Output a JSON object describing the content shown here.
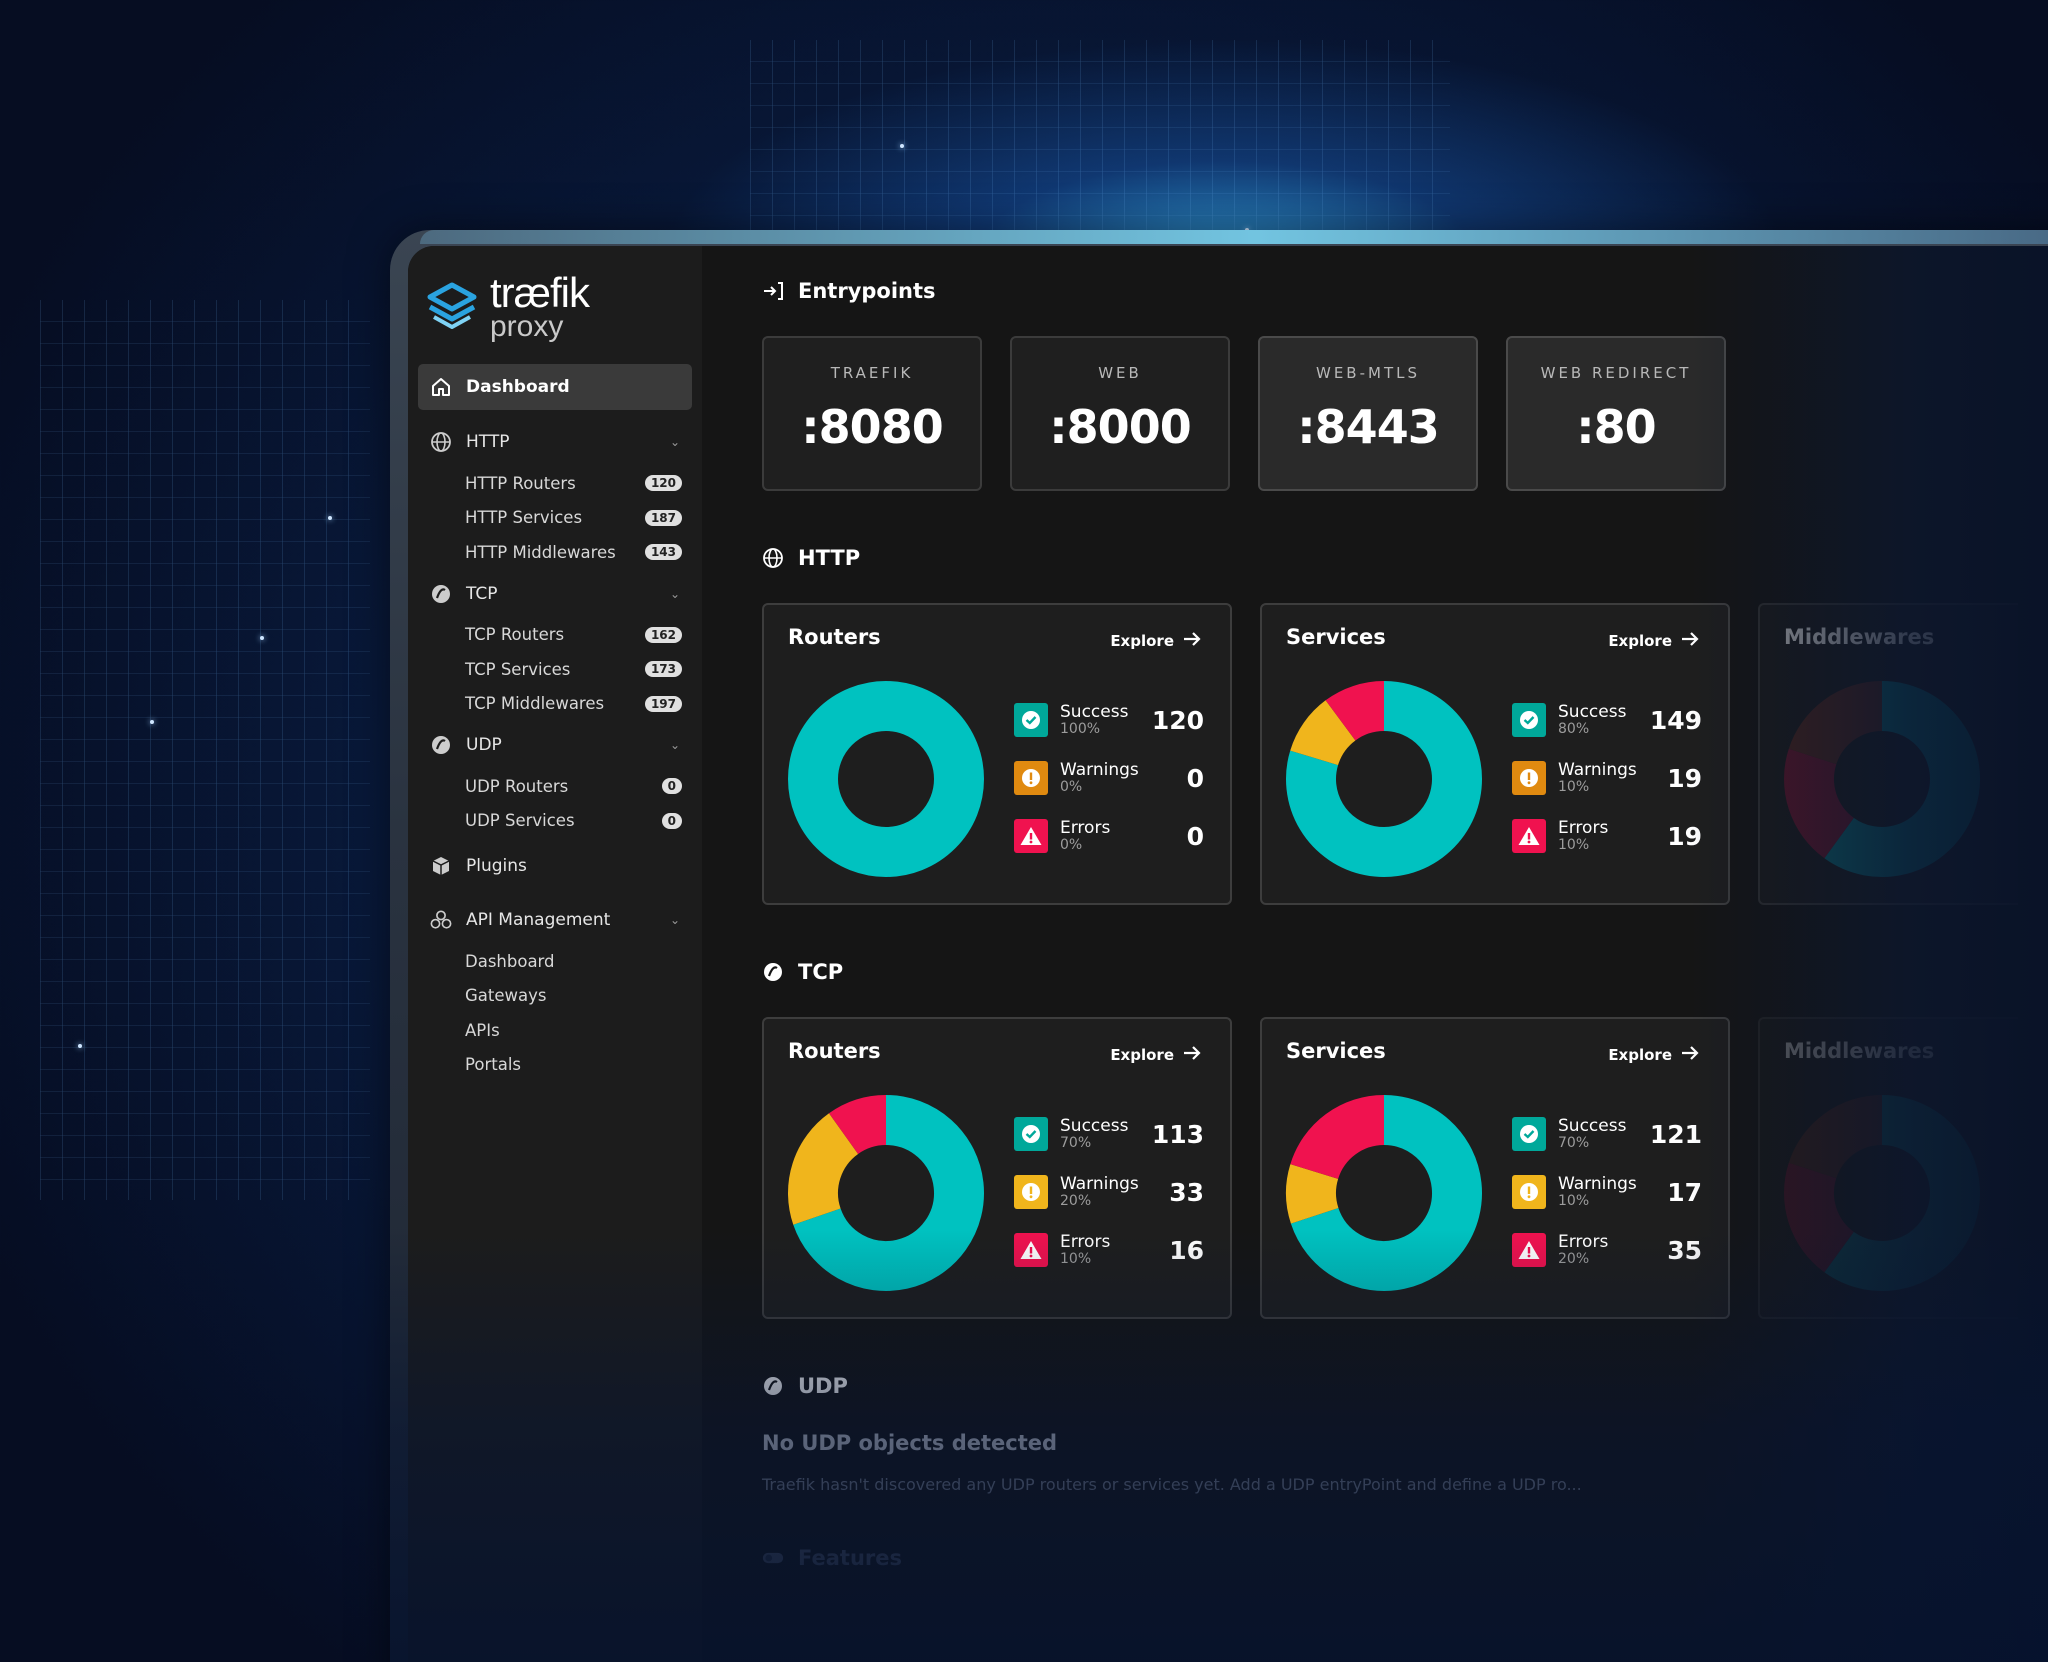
{
  "brand": {
    "name": "træfik",
    "sub": "proxy"
  },
  "sidebar": {
    "dashboard": "Dashboard",
    "groups": [
      {
        "label": "HTTP",
        "items": [
          {
            "label": "HTTP Routers",
            "count": "120"
          },
          {
            "label": "HTTP Services",
            "count": "187"
          },
          {
            "label": "HTTP Middlewares",
            "count": "143"
          }
        ]
      },
      {
        "label": "TCP",
        "items": [
          {
            "label": "TCP Routers",
            "count": "162"
          },
          {
            "label": "TCP Services",
            "count": "173"
          },
          {
            "label": "TCP Middlewares",
            "count": "197"
          }
        ]
      },
      {
        "label": "UDP",
        "items": [
          {
            "label": "UDP Routers",
            "count": "0"
          },
          {
            "label": "UDP Services",
            "count": "0"
          }
        ]
      }
    ],
    "plugins": "Plugins",
    "api": {
      "label": "API Management",
      "items": [
        "Dashboard",
        "Gateways",
        "APIs",
        "Portals"
      ]
    }
  },
  "entrypoints": {
    "title": "Entrypoints",
    "items": [
      {
        "name": "TRAEFIK",
        "port": ":8080"
      },
      {
        "name": "WEB",
        "port": ":8000"
      },
      {
        "name": "WEB-MTLS",
        "port": ":8443"
      },
      {
        "name": "WEB REDIRECT",
        "port": ":80"
      }
    ]
  },
  "labels": {
    "explore": "Explore",
    "success": "Success",
    "warnings": "Warnings",
    "errors": "Errors"
  },
  "http": {
    "title": "HTTP",
    "routers": {
      "title": "Routers",
      "success": 120,
      "success_pct": "100%",
      "warnings": 0,
      "warnings_pct": "0%",
      "errors": 0,
      "errors_pct": "0%"
    },
    "services": {
      "title": "Services",
      "success": 149,
      "success_pct": "80%",
      "warnings": 19,
      "warnings_pct": "10%",
      "errors": 19,
      "errors_pct": "10%"
    },
    "middlewares": {
      "title": "Middlewares"
    }
  },
  "tcp": {
    "title": "TCP",
    "routers": {
      "title": "Routers",
      "success": 113,
      "success_pct": "70%",
      "warnings": 33,
      "warnings_pct": "20%",
      "errors": 16,
      "errors_pct": "10%"
    },
    "services": {
      "title": "Services",
      "success": 121,
      "success_pct": "70%",
      "warnings": 17,
      "warnings_pct": "10%",
      "errors": 35,
      "errors_pct": "20%"
    },
    "middlewares": {
      "title": "Middlewares"
    }
  },
  "udp": {
    "title": "UDP",
    "empty_title": "No UDP objects detected",
    "empty_text": "Traefik hasn't discovered any UDP routers or services yet. Add a UDP entryPoint and define a UDP ro..."
  },
  "features": {
    "title": "Features"
  },
  "colors": {
    "success": "#00c2c0",
    "warning": "#f0b51c",
    "error": "#f0124f",
    "warning_alt": "#e08a10"
  }
}
